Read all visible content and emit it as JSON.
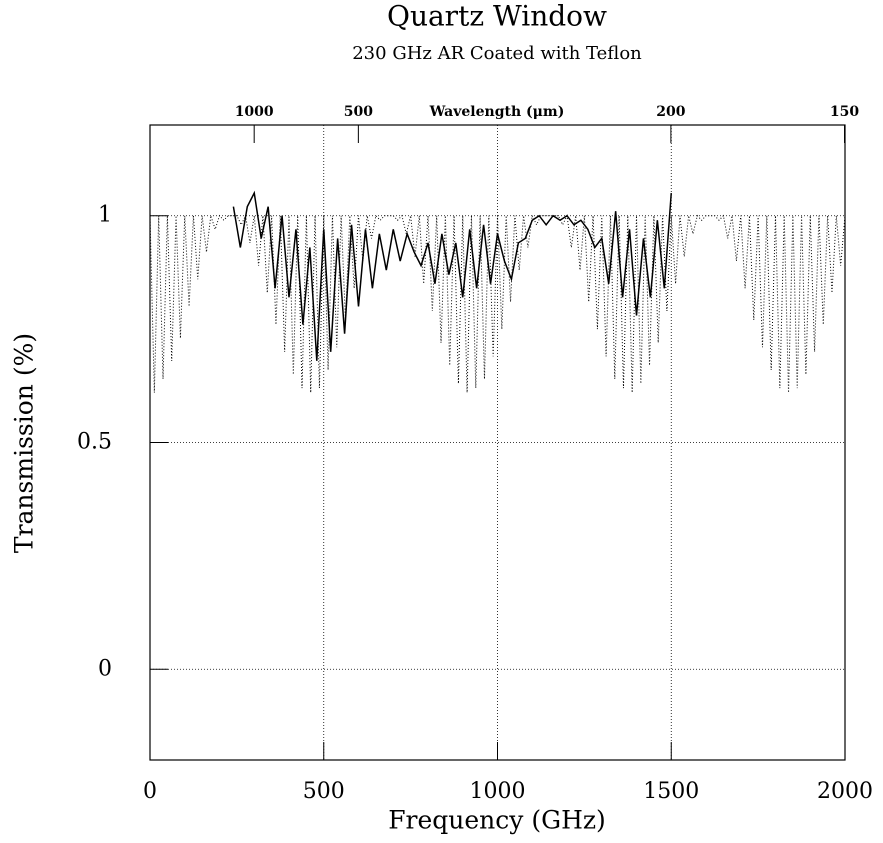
{
  "chart_data": {
    "type": "line",
    "title": "Quartz Window",
    "subtitle": "230 GHz AR Coated with Teflon",
    "xlabel": "Frequency (GHz)",
    "ylabel": "Transmission (%)",
    "x2label": "Wavelength (μm)",
    "xlim": [
      0,
      2000
    ],
    "xticks": [
      0,
      500,
      1000,
      1500,
      2000
    ],
    "ylim": [
      -0.2,
      1.2
    ],
    "yticks": [
      0,
      0.5,
      1
    ],
    "x2ticks": [
      1000,
      500,
      200,
      150
    ],
    "grid": true,
    "series": [
      {
        "style": "dotted",
        "color": "#000000",
        "x": [
          0,
          12.5,
          25,
          37.5,
          50,
          62.5,
          75,
          87.5,
          100,
          112.5,
          125,
          137.5,
          150,
          162.5,
          175,
          187.5,
          200,
          212.5,
          225,
          237.5,
          250,
          262.5,
          275,
          287.5,
          300,
          312.5,
          325,
          337.5,
          350,
          362.5,
          375,
          387.5,
          400,
          412.5,
          425,
          437.5,
          450,
          462.5,
          475,
          487.5,
          500,
          512.5,
          525,
          537.5,
          550,
          562.5,
          575,
          587.5,
          600,
          612.5,
          625,
          637.5,
          650,
          662.5,
          675,
          687.5,
          700,
          712.5,
          725,
          737.5,
          750,
          762.5,
          775,
          787.5,
          800,
          812.5,
          825,
          837.5,
          850,
          862.5,
          875,
          887.5,
          900,
          912.5,
          925,
          937.5,
          950,
          962.5,
          975,
          987.5,
          1000,
          1012.5,
          1025,
          1037.5,
          1050,
          1062.5,
          1075,
          1087.5,
          1100,
          1112.5,
          1125,
          1137.5,
          1150,
          1162.5,
          1175,
          1187.5,
          1200,
          1212.5,
          1225,
          1237.5,
          1250,
          1262.5,
          1275,
          1287.5,
          1300,
          1312.5,
          1325,
          1337.5,
          1350,
          1362.5,
          1375,
          1387.5,
          1400,
          1412.5,
          1425,
          1437.5,
          1450,
          1462.5,
          1475,
          1487.5,
          1500,
          1512.5,
          1525,
          1537.5,
          1550,
          1562.5,
          1575,
          1587.5,
          1600,
          1612.5,
          1625,
          1637.5,
          1650,
          1662.5,
          1675,
          1687.5,
          1700,
          1712.5,
          1725,
          1737.5,
          1750,
          1762.5,
          1775,
          1787.5,
          1800,
          1812.5,
          1825,
          1837.5,
          1850,
          1862.5,
          1875,
          1887.5,
          1900,
          1912.5,
          1925,
          1937.5,
          1950,
          1962.5,
          1975,
          1987.5,
          2000
        ],
        "values": [
          1,
          0.61,
          1,
          0.64,
          1,
          0.68,
          1,
          0.73,
          1,
          0.8,
          1,
          0.86,
          1,
          0.92,
          1,
          0.97,
          1,
          0.99,
          1,
          1,
          1,
          0.98,
          1,
          0.94,
          1,
          0.89,
          1,
          0.83,
          1,
          0.76,
          1,
          0.7,
          1,
          0.65,
          1,
          0.62,
          1,
          0.61,
          1,
          0.62,
          1,
          0.66,
          1,
          0.71,
          1,
          0.77,
          1,
          0.84,
          1,
          0.9,
          1,
          0.95,
          1,
          0.99,
          1,
          1,
          1,
          0.99,
          1,
          0.96,
          1,
          0.91,
          1,
          0.85,
          1,
          0.79,
          1,
          0.72,
          1,
          0.67,
          1,
          0.63,
          1,
          0.61,
          1,
          0.62,
          1,
          0.64,
          1,
          0.69,
          1,
          0.75,
          1,
          0.81,
          1,
          0.88,
          1,
          0.93,
          1,
          0.98,
          1,
          1,
          1,
          1,
          1,
          0.98,
          1,
          0.93,
          1,
          0.88,
          1,
          0.81,
          1,
          0.75,
          1,
          0.69,
          1,
          0.64,
          1,
          0.62,
          1,
          0.61,
          1,
          0.63,
          1,
          0.67,
          1,
          0.72,
          1,
          0.79,
          1,
          0.85,
          1,
          0.91,
          1,
          0.96,
          1,
          0.99,
          1,
          1,
          1,
          0.99,
          1,
          0.95,
          1,
          0.9,
          1,
          0.84,
          1,
          0.77,
          1,
          0.71,
          1,
          0.66,
          1,
          0.62,
          1,
          0.61,
          1,
          0.62,
          1,
          0.65,
          1,
          0.7,
          1,
          0.76,
          1,
          0.83,
          1,
          0.89,
          1
        ]
      },
      {
        "style": "solid",
        "color": "#000000",
        "x": [
          240,
          260,
          280,
          300,
          320,
          340,
          360,
          380,
          400,
          420,
          440,
          460,
          480,
          500,
          520,
          540,
          560,
          580,
          600,
          620,
          640,
          660,
          680,
          700,
          720,
          740,
          760,
          780,
          800,
          820,
          840,
          860,
          880,
          900,
          920,
          940,
          960,
          980,
          1000,
          1020,
          1040,
          1060,
          1080,
          1100,
          1120,
          1140,
          1160,
          1180,
          1200,
          1220,
          1240,
          1260,
          1280,
          1300,
          1320,
          1340,
          1360,
          1380,
          1400,
          1420,
          1440,
          1460,
          1480,
          1500
        ],
        "values": [
          1.02,
          0.93,
          1.02,
          1.05,
          0.95,
          1.02,
          0.84,
          1.0,
          0.82,
          0.97,
          0.76,
          0.93,
          0.68,
          0.97,
          0.7,
          0.95,
          0.74,
          0.98,
          0.8,
          0.97,
          0.84,
          0.96,
          0.88,
          0.97,
          0.9,
          0.96,
          0.92,
          0.89,
          0.94,
          0.85,
          0.96,
          0.87,
          0.94,
          0.82,
          0.97,
          0.84,
          0.98,
          0.85,
          0.96,
          0.9,
          0.86,
          0.94,
          0.95,
          0.99,
          1.0,
          0.98,
          1.0,
          0.99,
          1.0,
          0.98,
          0.99,
          0.97,
          0.93,
          0.95,
          0.85,
          1.01,
          0.82,
          0.97,
          0.78,
          0.95,
          0.82,
          0.99,
          0.84,
          1.05
        ]
      }
    ]
  }
}
